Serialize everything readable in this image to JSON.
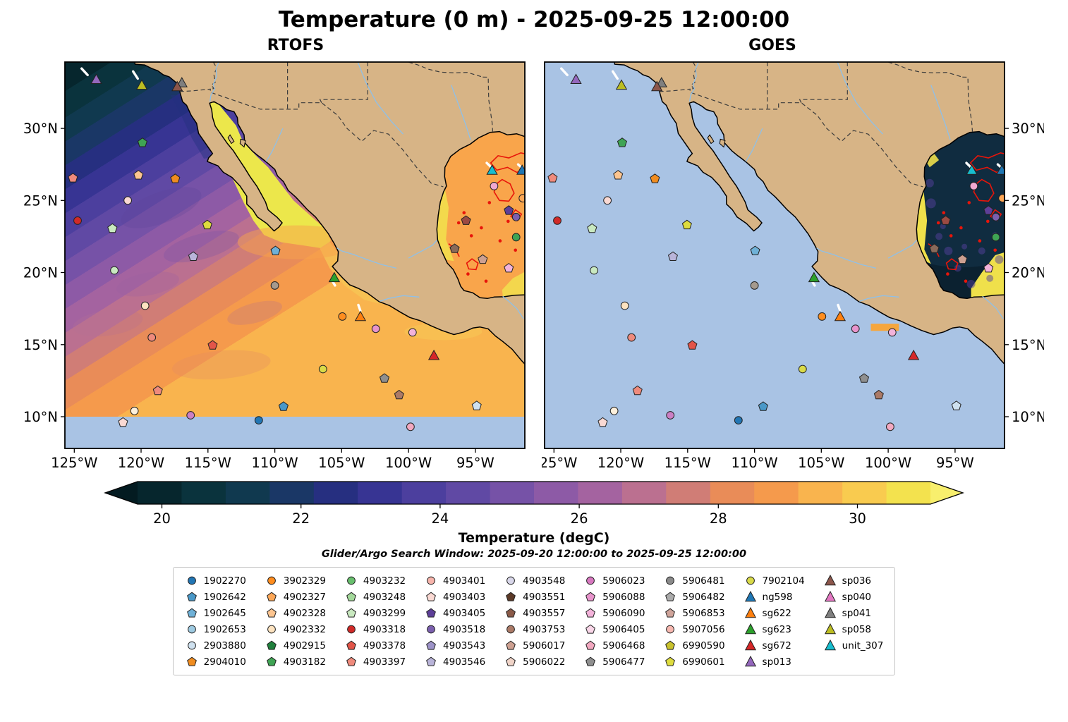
{
  "title": "Temperature (0 m) - 2025-09-25 12:00:00",
  "subtitle": "Glider/Argo Search Window: 2025-09-20 12:00:00 to 2025-09-25 12:00:00",
  "chart_data": {
    "type": "heatmap",
    "title": "Temperature (0 m) - 2025-09-25 12:00:00",
    "panels": [
      {
        "name": "RTOFS",
        "ylabel_side": "left",
        "field": "model",
        "description": "RTOFS model sea-surface temperature: cold (~19-21 degC, dark teal/navy) in NW Pacific corner grading SE through purple to warm orange (~27 degC); Gulf of California ~31 degC (yellow); Gulf of Mexico 28-31 degC with red front contours; light-blue no-data band south of 10N"
      },
      {
        "name": "GOES",
        "ylabel_side": "right",
        "field": "satellite",
        "description": "GOES satellite sea-surface temperature: Pacific masked (no data, light blue); Gulf of Mexico shows data 19-31 degC with red front contours and warm yellow coastal band; small orange strip near Acapulco"
      }
    ],
    "lon_range": [
      -125.7,
      -91.3
    ],
    "lat_range": [
      7.8,
      34.6
    ],
    "lon_ticks": [
      {
        "value": -125,
        "label": "125°W"
      },
      {
        "value": -120,
        "label": "120°W"
      },
      {
        "value": -115,
        "label": "115°W"
      },
      {
        "value": -110,
        "label": "110°W"
      },
      {
        "value": -105,
        "label": "105°W"
      },
      {
        "value": -100,
        "label": "100°W"
      },
      {
        "value": -95,
        "label": "95°W"
      }
    ],
    "lat_ticks": [
      {
        "value": 30,
        "label": "30°N"
      },
      {
        "value": 25,
        "label": "25°N"
      },
      {
        "value": 20,
        "label": "20°N"
      },
      {
        "value": 15,
        "label": "15°N"
      },
      {
        "value": 10,
        "label": "10°N"
      }
    ],
    "colorbar": {
      "label": "Temperature (degC)",
      "vmin": 19.65,
      "vmax": 31.05,
      "extend": "both",
      "ticks": [
        {
          "value": 20,
          "label": "20"
        },
        {
          "value": 22,
          "label": "22"
        },
        {
          "value": 24,
          "label": "24"
        },
        {
          "value": 26,
          "label": "26"
        },
        {
          "value": 28,
          "label": "28"
        },
        {
          "value": 30,
          "label": "30"
        }
      ],
      "colors": [
        "#06262d",
        "#0a333d",
        "#10394f",
        "#1a3766",
        "#262f80",
        "#373493",
        "#4c3f9e",
        "#6049a4",
        "#7652a7",
        "#8d5aa6",
        "#a463a0",
        "#bb7090",
        "#d07d76",
        "#e98c58",
        "#f59a4c",
        "#f9b44e",
        "#f9cb4f",
        "#f3e24e"
      ],
      "under_color": "#031b21",
      "over_color": "#f8ef6d"
    },
    "colors": {
      "land": "#d7b486",
      "no_data_ocean": "#a9c3e4",
      "coastline": "#000000",
      "front_contour": "#e8150a"
    },
    "markers": [
      {
        "shape": "triangle",
        "color": "#9467bd",
        "lon": -123.35,
        "lat": 33.35,
        "id": "sp013"
      },
      {
        "shape": "triangle",
        "color": "#bcbd22",
        "lon": -119.95,
        "lat": 32.95,
        "id": "sp058"
      },
      {
        "shape": "triangle",
        "color": "#7f7f7f",
        "lon": -116.95,
        "lat": 33.12,
        "id": "sp041"
      },
      {
        "shape": "triangle",
        "color": "#8c564b",
        "lon": -117.3,
        "lat": 32.85,
        "id": "sp036"
      },
      {
        "shape": "pentagon",
        "color": "#3fa454",
        "lon": -119.9,
        "lat": 29.0
      },
      {
        "shape": "pentagon",
        "color": "#ef8a7c",
        "lon": -125.1,
        "lat": 26.55
      },
      {
        "shape": "pentagon",
        "color": "#fdc590",
        "lon": -120.2,
        "lat": 26.75
      },
      {
        "shape": "pentagon",
        "color": "#f08c1f",
        "lon": -117.45,
        "lat": 26.5
      },
      {
        "shape": "circle",
        "color": "#d12a28",
        "lon": -124.75,
        "lat": 23.6
      },
      {
        "shape": "circle",
        "color": "#fad9d3",
        "lon": -121.0,
        "lat": 25.0
      },
      {
        "shape": "pentagon",
        "color": "#c9e9c0",
        "lon": -122.15,
        "lat": 23.05
      },
      {
        "shape": "pentagon",
        "color": "#dedc3e",
        "lon": -115.05,
        "lat": 23.3
      },
      {
        "shape": "circle",
        "color": "#c9e9c0",
        "lon": -122.0,
        "lat": 20.15
      },
      {
        "shape": "pentagon",
        "color": "#b9b4d9",
        "lon": -116.1,
        "lat": 21.1
      },
      {
        "shape": "pentagon",
        "color": "#6fb1d7",
        "lon": -109.95,
        "lat": 21.5
      },
      {
        "shape": "circle",
        "color": "#a59a8e",
        "lon": -110.0,
        "lat": 19.1
      },
      {
        "shape": "triangle",
        "color": "#2ca02c",
        "lon": -105.55,
        "lat": 19.6,
        "id": "sg623"
      },
      {
        "shape": "circle",
        "color": "#fde3c0",
        "lon": -119.7,
        "lat": 17.7
      },
      {
        "shape": "circle",
        "color": "#ff8d1e",
        "lon": -104.95,
        "lat": 16.95
      },
      {
        "shape": "triangle",
        "color": "#ff7f0e",
        "lon": -103.6,
        "lat": 16.9,
        "id": "sg622"
      },
      {
        "shape": "circle",
        "color": "#e894cc",
        "lon": -102.45,
        "lat": 16.1
      },
      {
        "shape": "circle",
        "color": "#ef8a7c",
        "lon": -119.2,
        "lat": 15.5
      },
      {
        "shape": "pentagon",
        "color": "#e25549",
        "lon": -114.65,
        "lat": 14.95
      },
      {
        "shape": "circle",
        "color": "#f3b3da",
        "lon": -99.7,
        "lat": 15.85
      },
      {
        "shape": "triangle",
        "color": "#d62728",
        "lon": -98.1,
        "lat": 14.2,
        "id": "sg672"
      },
      {
        "shape": "circle",
        "color": "#d9da48",
        "lon": -106.4,
        "lat": 13.3
      },
      {
        "shape": "pentagon",
        "color": "#8f8f8f",
        "lon": -101.8,
        "lat": 12.65
      },
      {
        "shape": "pentagon",
        "color": "#ef8a7c",
        "lon": -118.75,
        "lat": 11.8
      },
      {
        "shape": "pentagon",
        "color": "#ab7a67",
        "lon": -100.7,
        "lat": 11.5
      },
      {
        "shape": "pentagon",
        "color": "#cfe1ef",
        "lon": -94.9,
        "lat": 10.75
      },
      {
        "shape": "circle",
        "color": "#fdf0dc",
        "lon": -120.5,
        "lat": 10.4
      },
      {
        "shape": "circle",
        "color": "#cb7fc4",
        "lon": -116.3,
        "lat": 10.1
      },
      {
        "shape": "circle",
        "color": "#2276b4",
        "lon": -111.2,
        "lat": 9.75
      },
      {
        "shape": "pentagon",
        "color": "#fad9d3",
        "lon": -121.35,
        "lat": 9.6
      },
      {
        "shape": "pentagon",
        "color": "#4a98c8",
        "lon": -109.35,
        "lat": 10.7
      },
      {
        "shape": "circle",
        "color": "#f2a8c0",
        "lon": -99.85,
        "lat": 9.3
      },
      {
        "shape": "triangle",
        "color": "#17becf",
        "lon": -93.75,
        "lat": 27.05,
        "id": "unit_307"
      },
      {
        "shape": "triangle",
        "color": "#1f77b4",
        "lon": -91.5,
        "lat": 27.05,
        "id": "ng598"
      },
      {
        "shape": "circle",
        "color": "#f0a8cf",
        "lon": -93.6,
        "lat": 26.0
      },
      {
        "shape": "circle",
        "color": "#fda757",
        "lon": -91.45,
        "lat": 25.15
      },
      {
        "shape": "pentagon",
        "color": "#9c4a42",
        "lon": -95.7,
        "lat": 23.6
      },
      {
        "shape": "pentagon",
        "color": "#5d3f98",
        "lon": -92.5,
        "lat": 24.3
      },
      {
        "shape": "circle",
        "color": "#7b5fae",
        "lon": -91.95,
        "lat": 23.85
      },
      {
        "shape": "circle",
        "color": "#3fa454",
        "lon": -91.95,
        "lat": 22.45
      },
      {
        "shape": "pentagon",
        "color": "#8a6a5a",
        "lon": -96.55,
        "lat": 21.65
      },
      {
        "shape": "pentagon",
        "color": "#cda091",
        "lon": -94.45,
        "lat": 20.9
      },
      {
        "shape": "pentagon",
        "color": "#f3b3da",
        "lon": -92.5,
        "lat": 20.3
      }
    ]
  },
  "legend": {
    "columns": [
      [
        {
          "id": "1902270",
          "shape": "circle",
          "color": "#2276b4"
        },
        {
          "id": "1902642",
          "shape": "pentagon",
          "color": "#4a98c8"
        },
        {
          "id": "1902645",
          "shape": "pentagon",
          "color": "#6fb1d7"
        },
        {
          "id": "1902653",
          "shape": "circle",
          "color": "#9ecae1"
        },
        {
          "id": "2903880",
          "shape": "circle",
          "color": "#cfe1ef"
        },
        {
          "id": "2904010",
          "shape": "pentagon",
          "color": "#f08c1f"
        }
      ],
      [
        {
          "id": "3902329",
          "shape": "circle",
          "color": "#ff8d1e"
        },
        {
          "id": "4902327",
          "shape": "pentagon",
          "color": "#fda757"
        },
        {
          "id": "4902328",
          "shape": "pentagon",
          "color": "#fdc590"
        },
        {
          "id": "4902332",
          "shape": "circle",
          "color": "#fde3c0"
        },
        {
          "id": "4902915",
          "shape": "pentagon",
          "color": "#20803c"
        },
        {
          "id": "4903182",
          "shape": "pentagon",
          "color": "#3fa454"
        }
      ],
      [
        {
          "id": "4903232",
          "shape": "circle",
          "color": "#68bf6d"
        },
        {
          "id": "4903248",
          "shape": "pentagon",
          "color": "#a3d89a"
        },
        {
          "id": "4903299",
          "shape": "pentagon",
          "color": "#c9e9c0"
        },
        {
          "id": "4903318",
          "shape": "circle",
          "color": "#d12a28"
        },
        {
          "id": "4903378",
          "shape": "pentagon",
          "color": "#e25549"
        },
        {
          "id": "4903397",
          "shape": "pentagon",
          "color": "#ef8a7c"
        }
      ],
      [
        {
          "id": "4903401",
          "shape": "circle",
          "color": "#f7b4ab"
        },
        {
          "id": "4903403",
          "shape": "pentagon",
          "color": "#fad9d3"
        },
        {
          "id": "4903405",
          "shape": "pentagon",
          "color": "#5d3f98"
        },
        {
          "id": "4903518",
          "shape": "circle",
          "color": "#7b5fae"
        },
        {
          "id": "4903543",
          "shape": "pentagon",
          "color": "#9d93c8"
        },
        {
          "id": "4903546",
          "shape": "pentagon",
          "color": "#b9b4d9"
        }
      ],
      [
        {
          "id": "4903548",
          "shape": "circle",
          "color": "#d9d7ea"
        },
        {
          "id": "4903551",
          "shape": "pentagon",
          "color": "#5c3a28"
        },
        {
          "id": "4903557",
          "shape": "pentagon",
          "color": "#8a5a48"
        },
        {
          "id": "4903753",
          "shape": "circle",
          "color": "#ab7a67"
        },
        {
          "id": "5906017",
          "shape": "pentagon",
          "color": "#cda091"
        },
        {
          "id": "5906022",
          "shape": "pentagon",
          "color": "#f0d4c8"
        }
      ],
      [
        {
          "id": "5906023",
          "shape": "circle",
          "color": "#d878c0"
        },
        {
          "id": "5906088",
          "shape": "pentagon",
          "color": "#e894cc"
        },
        {
          "id": "5906090",
          "shape": "pentagon",
          "color": "#f3b3da"
        },
        {
          "id": "5906405",
          "shape": "pentagon",
          "color": "#f9d6e8"
        },
        {
          "id": "5906468",
          "shape": "pentagon",
          "color": "#f2a8c0"
        },
        {
          "id": "5906477",
          "shape": "pentagon",
          "color": "#8f8f8f"
        }
      ],
      [
        {
          "id": "5906481",
          "shape": "circle",
          "color": "#8a8a8a"
        },
        {
          "id": "5906482",
          "shape": "pentagon",
          "color": "#ababab"
        },
        {
          "id": "5906853",
          "shape": "pentagon",
          "color": "#cfa49a"
        },
        {
          "id": "5907056",
          "shape": "circle",
          "color": "#f7b8b0"
        },
        {
          "id": "6990590",
          "shape": "pentagon",
          "color": "#c9c22e"
        },
        {
          "id": "6990601",
          "shape": "pentagon",
          "color": "#dedc3e"
        }
      ],
      [
        {
          "id": "7902104",
          "shape": "circle",
          "color": "#d9da48"
        },
        {
          "id": "ng598",
          "shape": "triangle",
          "color": "#1f77b4"
        },
        {
          "id": "sg622",
          "shape": "triangle",
          "color": "#ff7f0e"
        },
        {
          "id": "sg623",
          "shape": "triangle",
          "color": "#2ca02c"
        },
        {
          "id": "sg672",
          "shape": "triangle",
          "color": "#d62728"
        },
        {
          "id": "sp013",
          "shape": "triangle",
          "color": "#9467bd"
        }
      ],
      [
        {
          "id": "sp036",
          "shape": "triangle",
          "color": "#8c564b"
        },
        {
          "id": "sp040",
          "shape": "triangle",
          "color": "#e377c2"
        },
        {
          "id": "sp041",
          "shape": "triangle",
          "color": "#7f7f7f"
        },
        {
          "id": "sp058",
          "shape": "triangle",
          "color": "#bcbd22"
        },
        {
          "id": "unit_307",
          "shape": "triangle",
          "color": "#17becf"
        }
      ]
    ]
  }
}
